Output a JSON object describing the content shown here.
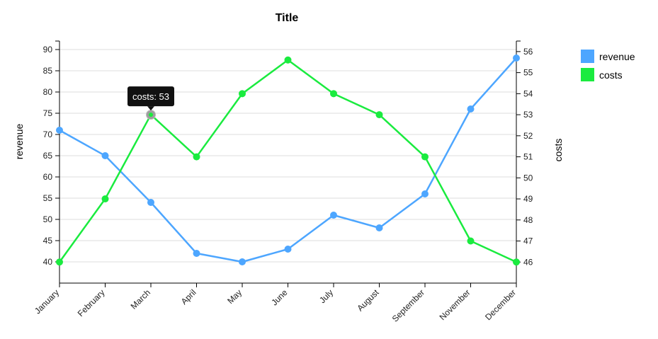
{
  "chart_data": {
    "type": "line",
    "title": "Title",
    "categories": [
      "January",
      "February",
      "March",
      "April",
      "May",
      "June",
      "July",
      "August",
      "September",
      "November",
      "December"
    ],
    "y_left": {
      "label": "revenue",
      "ylim": [
        35,
        92
      ],
      "ticks": [
        40,
        45,
        50,
        55,
        60,
        65,
        70,
        75,
        80,
        85,
        90
      ]
    },
    "y_right": {
      "label": "costs",
      "ylim": [
        45,
        56.5
      ],
      "ticks": [
        46,
        47,
        48,
        49,
        50,
        51,
        52,
        53,
        54,
        55,
        56
      ]
    },
    "series": [
      {
        "name": "revenue",
        "axis": "left",
        "color": "#4da6ff",
        "values": [
          71,
          65,
          54,
          42,
          40,
          43,
          51,
          48,
          56,
          76,
          88
        ]
      },
      {
        "name": "costs",
        "axis": "right",
        "color": "#1aeb3f",
        "values": [
          46,
          49,
          53,
          51,
          54,
          55.6,
          54,
          53,
          51,
          47,
          46
        ]
      }
    ],
    "grid": true,
    "legend": "top-right",
    "tooltip": {
      "series_index": 1,
      "point_index": 2,
      "text": "costs: 53"
    }
  }
}
